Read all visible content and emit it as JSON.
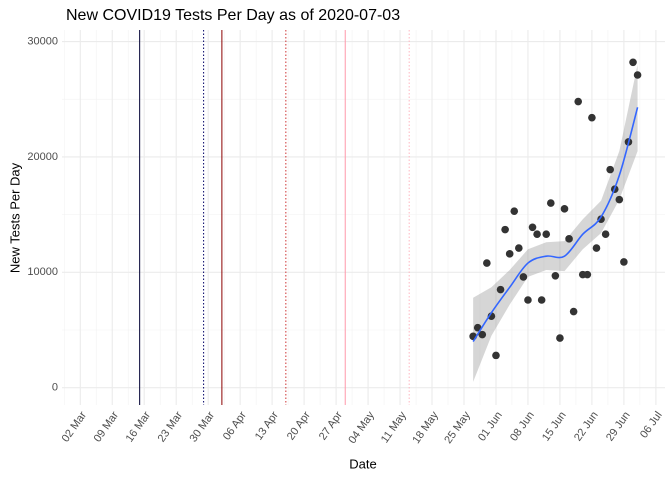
{
  "chart_data": {
    "type": "scatter",
    "title": "New COVID19 Tests Per Day as of 2020-07-03",
    "x_label": "Date",
    "y_label": "New Tests Per Day",
    "x": [
      "05-27",
      "05-28",
      "05-29",
      "05-30",
      "05-31",
      "06-01",
      "06-02",
      "06-03",
      "06-04",
      "06-05",
      "06-06",
      "06-07",
      "06-08",
      "06-09",
      "06-10",
      "06-11",
      "06-12",
      "06-13",
      "06-14",
      "06-15",
      "06-16",
      "06-17",
      "06-18",
      "06-19",
      "06-20",
      "06-21",
      "06-22",
      "06-23",
      "06-24",
      "06-25",
      "06-26",
      "06-27",
      "06-28",
      "06-29",
      "06-30",
      "07-01",
      "07-02"
    ],
    "values": [
      4450,
      5200,
      4600,
      10800,
      6200,
      2800,
      8500,
      13700,
      11600,
      15300,
      12100,
      9600,
      7600,
      13900,
      13300,
      7600,
      13300,
      16000,
      9700,
      4300,
      15500,
      12900,
      6600,
      24800,
      9800,
      9800,
      23400,
      12100,
      14600,
      13300,
      18900,
      17200,
      16300,
      10900,
      21300,
      28200,
      27100
    ],
    "color": "#333333",
    "smooth": {
      "color": "#3366FF",
      "band_color": "#999999",
      "x": [
        "05-27",
        "05-31",
        "06-04",
        "06-08",
        "06-12",
        "06-16",
        "06-20",
        "06-24",
        "06-28",
        "07-02"
      ],
      "values": [
        4000,
        6500,
        8700,
        10800,
        11400,
        11400,
        13300,
        14800,
        18400,
        24300
      ],
      "lower": [
        500,
        4500,
        7200,
        9600,
        10200,
        10100,
        12000,
        13400,
        16300,
        20500
      ],
      "upper": [
        7800,
        8700,
        10200,
        12000,
        12600,
        12700,
        14600,
        16200,
        20500,
        28000
      ]
    },
    "vlines": [
      {
        "x": "03-15",
        "color": "#000033",
        "style": "solid"
      },
      {
        "x": "03-29",
        "color": "#000066",
        "style": "dotted"
      },
      {
        "x": "04-02",
        "color": "#8b0000",
        "style": "solid"
      },
      {
        "x": "04-16",
        "color": "#cc3333",
        "style": "dotted"
      },
      {
        "x": "04-29",
        "color": "#ff99aa",
        "style": "solid"
      },
      {
        "x": "05-13",
        "color": "#ffb6c1",
        "style": "dotted"
      }
    ],
    "xlim": [
      "02-27",
      "07-08"
    ],
    "xticks": [
      {
        "value": "03-02",
        "label": "02 Mar"
      },
      {
        "value": "03-09",
        "label": "09 Mar"
      },
      {
        "value": "03-16",
        "label": "16 Mar"
      },
      {
        "value": "03-23",
        "label": "23 Mar"
      },
      {
        "value": "03-30",
        "label": "30 Mar"
      },
      {
        "value": "04-06",
        "label": "06 Apr"
      },
      {
        "value": "04-13",
        "label": "13 Apr"
      },
      {
        "value": "04-20",
        "label": "20 Apr"
      },
      {
        "value": "04-27",
        "label": "27 Apr"
      },
      {
        "value": "05-04",
        "label": "04 May"
      },
      {
        "value": "05-11",
        "label": "11 May"
      },
      {
        "value": "05-18",
        "label": "18 May"
      },
      {
        "value": "05-25",
        "label": "25 May"
      },
      {
        "value": "06-01",
        "label": "01 Jun"
      },
      {
        "value": "06-08",
        "label": "08 Jun"
      },
      {
        "value": "06-15",
        "label": "15 Jun"
      },
      {
        "value": "06-22",
        "label": "22 Jun"
      },
      {
        "value": "06-29",
        "label": "29 Jun"
      },
      {
        "value": "07-06",
        "label": "06 Jul"
      }
    ],
    "ylim": [
      -1500,
      31000
    ],
    "yticks": [
      0,
      10000,
      20000,
      30000
    ],
    "grid": true
  }
}
